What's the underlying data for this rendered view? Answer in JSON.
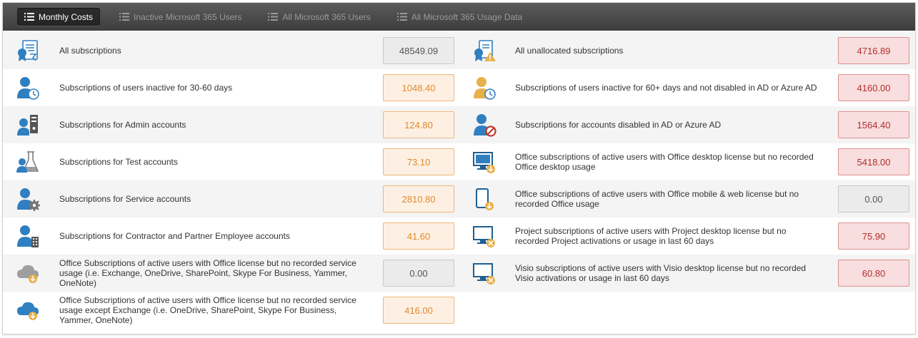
{
  "tabs": [
    {
      "label": "Monthly Costs",
      "active": true
    },
    {
      "label": "Inactive Microsoft 365 Users",
      "active": false
    },
    {
      "label": "All Microsoft 365 Users",
      "active": false
    },
    {
      "label": "All Microsoft 365 Usage Data",
      "active": false
    }
  ],
  "colors": {
    "accent_blue": "#2f7fc1",
    "orange": "#e08a2c",
    "red": "#b32d2d",
    "gray_icon": "#9e9e9e",
    "yellow_icon": "#e8b04a"
  },
  "left": [
    {
      "icon": "subscriptions-certificate-icon",
      "label": "All subscriptions",
      "value": "48549.09",
      "style": "gray"
    },
    {
      "icon": "user-clock-icon",
      "label": "Subscriptions of users inactive for 30-60 days",
      "value": "1048.40",
      "style": "orange"
    },
    {
      "icon": "user-admin-server-icon",
      "label": "Subscriptions for Admin accounts",
      "value": "124.80",
      "style": "orange"
    },
    {
      "icon": "user-test-flask-icon",
      "label": "Subscriptions for Test accounts",
      "value": "73.10",
      "style": "orange"
    },
    {
      "icon": "user-service-gear-icon",
      "label": "Subscriptions for Service accounts",
      "value": "2810.80",
      "style": "orange"
    },
    {
      "icon": "user-contractor-building-icon",
      "label": "Subscriptions for Contractor and Partner Employee accounts",
      "value": "41.60",
      "style": "orange"
    },
    {
      "icon": "cloud-gray-download-icon",
      "label": "Office Subscriptions of active users with Office license but no recorded service usage (i.e. Exchange, OneDrive, SharePoint, Skype For Business, Yammer, OneNote)",
      "value": "0.00",
      "style": "gray"
    },
    {
      "icon": "cloud-blue-download-icon",
      "label": "Office Subscriptions of active users with Office license but no recorded service usage except Exchange (i.e. OneDrive, SharePoint, Skype For Business, Yammer, OneNote)",
      "value": "416.00",
      "style": "orange"
    }
  ],
  "right": [
    {
      "icon": "unallocated-warning-icon",
      "label": "All unallocated subscriptions",
      "value": "4716.89",
      "style": "red"
    },
    {
      "icon": "user-yellow-clock-icon",
      "label": "Subscriptions of users inactive for 60+ days and not disabled in AD or Azure AD",
      "value": "4160.00",
      "style": "red"
    },
    {
      "icon": "user-disabled-icon",
      "label": "Subscriptions for accounts disabled in AD or Azure AD",
      "value": "1564.40",
      "style": "red"
    },
    {
      "icon": "desktop-download-icon",
      "label": "Office subscriptions of active users with Office desktop license but no recorded Office desktop usage",
      "value": "5418.00",
      "style": "red"
    },
    {
      "icon": "mobile-download-icon",
      "label": "Office subscriptions of active users with Office mobile & web license but no recorded Office usage",
      "value": "0.00",
      "style": "gray"
    },
    {
      "icon": "desktop-cancel-icon",
      "label": "Project subscriptions of active users with Project desktop license but no recorded Project activations or usage in last 60 days",
      "value": "75.90",
      "style": "red"
    },
    {
      "icon": "desktop-cancel-icon",
      "label": "Visio subscriptions of active users with Visio desktop license but no recorded Visio activations or usage in last 60 days",
      "value": "60.80",
      "style": "red"
    }
  ]
}
